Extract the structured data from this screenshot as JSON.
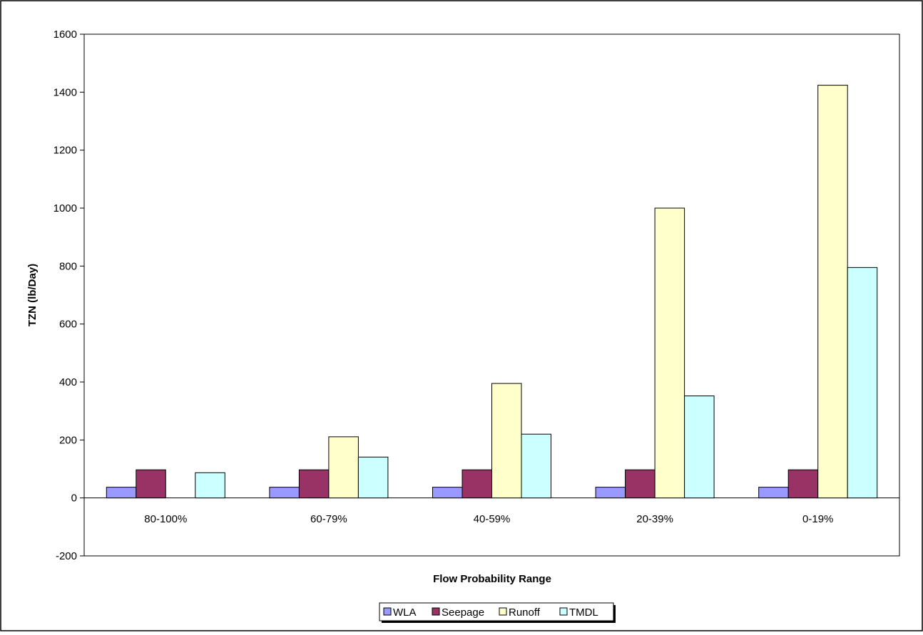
{
  "chart_data": {
    "type": "bar",
    "title": "",
    "xlabel": "Flow Probability Range",
    "ylabel": "TZN (lb/Day)",
    "ylim": [
      -200,
      1600
    ],
    "ytick_step": 200,
    "yticks": [
      "-200",
      "0",
      "200",
      "400",
      "600",
      "800",
      "1000",
      "1200",
      "1400",
      "1600"
    ],
    "grid": false,
    "legend_position": "bottom",
    "categories": [
      "80-100%",
      "60-79%",
      "40-59%",
      "20-39%",
      "0-19%"
    ],
    "series": [
      {
        "name": "WLA",
        "color": "#9999ff",
        "values": [
          37,
          37,
          37,
          37,
          37
        ]
      },
      {
        "name": "Seepage",
        "color": "#993366",
        "values": [
          97,
          97,
          97,
          97,
          97
        ]
      },
      {
        "name": "Runoff",
        "color": "#ffffcc",
        "values": [
          0,
          211,
          395,
          1000,
          1424
        ]
      },
      {
        "name": "TMDL",
        "color": "#ccffff",
        "values": [
          87,
          141,
          220,
          352,
          795
        ]
      }
    ]
  }
}
